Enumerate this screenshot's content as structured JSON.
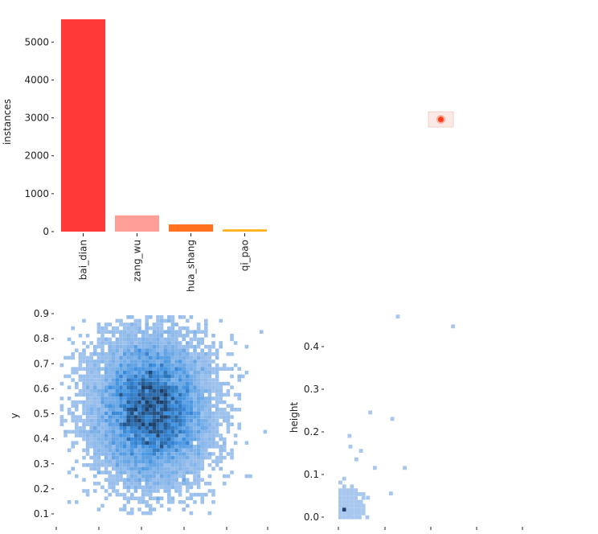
{
  "colors": {
    "bar_palette": [
      "#ff3838",
      "#ff9d97",
      "#ff701f",
      "#ffb21d"
    ],
    "hist_light": "#a7c7ee",
    "hist_mid": "#3b8fe0",
    "hist_dark": "#1f3f66",
    "label_box_fill": "#fbe9e6",
    "label_box_dot": "#ff3b1f"
  },
  "chart_data": [
    {
      "type": "bar",
      "categories": [
        "bai_dian",
        "zang_wu",
        "hua_shang",
        "qi_pao"
      ],
      "values": [
        5600,
        430,
        190,
        60
      ],
      "ylabel": "instances",
      "ylim": [
        0,
        5800
      ],
      "yticks": [
        0,
        1000,
        2000,
        3000,
        4000,
        5000
      ],
      "grid": false
    },
    {
      "type": "scatter",
      "description_role": "label-box overlay",
      "points": [
        {
          "x": 0.5,
          "y": 0.5
        }
      ]
    },
    {
      "type": "heatmap",
      "xlabel": "",
      "ylabel": "y",
      "ylim": [
        0.07,
        0.9
      ],
      "yticks": [
        0.1,
        0.2,
        0.3,
        0.4,
        0.5,
        0.6,
        0.7,
        0.8,
        0.9
      ],
      "xlim": [
        0.0,
        1.0
      ],
      "x_mean": 0.45,
      "y_mean": 0.52,
      "x_sd": 0.135,
      "y_sd": 0.145
    },
    {
      "type": "heatmap",
      "xlabel": "",
      "ylabel": "height",
      "ylim": [
        -0.01,
        0.48
      ],
      "yticks": [
        0.0,
        0.1,
        0.2,
        0.3,
        0.4
      ],
      "outliers": [
        {
          "x": 0.065,
          "y": 0.25
        },
        {
          "x": 0.125,
          "y": 0.475
        },
        {
          "x": 0.245,
          "y": 0.452
        },
        {
          "x": 0.113,
          "y": 0.235
        },
        {
          "x": 0.14,
          "y": 0.12
        },
        {
          "x": 0.045,
          "y": 0.16
        },
        {
          "x": 0.022,
          "y": 0.17
        },
        {
          "x": 0.02,
          "y": 0.195
        },
        {
          "x": 0.035,
          "y": 0.14
        },
        {
          "x": 0.075,
          "y": 0.12
        },
        {
          "x": 0.11,
          "y": 0.06
        },
        {
          "x": 0.06,
          "y": 0.05
        },
        {
          "x": 0.045,
          "y": 0.04
        },
        {
          "x": 0.02,
          "y": 0.012
        }
      ]
    }
  ]
}
